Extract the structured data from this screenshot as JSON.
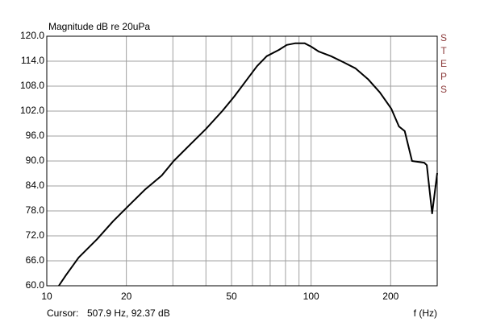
{
  "chart_data": {
    "type": "line",
    "title": "Magnitude dB re 20uPa",
    "side_label": "STEPS",
    "cursor_label": "Cursor:",
    "cursor_value": "507.9 Hz, 92.37 dB",
    "x_label": "f (Hz)",
    "x_scale": "log",
    "xlim": [
      10,
      300
    ],
    "ylim": [
      60,
      120
    ],
    "xticks": [
      10,
      20,
      50,
      100,
      200
    ],
    "x_minor_grid": [
      30,
      40,
      60,
      70,
      80,
      90
    ],
    "yticks": [
      {
        "value": 60,
        "label": "60.0"
      },
      {
        "value": 66,
        "label": "66.0"
      },
      {
        "value": 72,
        "label": "72.0"
      },
      {
        "value": 78,
        "label": "78.0"
      },
      {
        "value": 84,
        "label": "84.0"
      },
      {
        "value": 90,
        "label": "90.0"
      },
      {
        "value": 96,
        "label": "96.0"
      },
      {
        "value": 102,
        "label": "102.0"
      },
      {
        "value": 108,
        "label": "108.0"
      },
      {
        "value": 114,
        "label": "114.0"
      },
      {
        "value": 120,
        "label": "120.0"
      }
    ],
    "grid": true,
    "color": "#000000",
    "x": [
      11.1,
      11.8,
      13.2,
      15.5,
      17.8,
      20.5,
      23.6,
      27.2,
      30.2,
      34.8,
      40,
      46.1,
      51.2,
      56.9,
      62.4,
      67.9,
      75.5,
      80.9,
      86.9,
      94.6,
      100,
      107,
      119,
      132,
      147,
      164,
      182,
      201,
      215,
      226,
      241,
      268,
      274,
      287,
      300
    ],
    "values": [
      60,
      62.5,
      66.8,
      71.2,
      75.5,
      79.4,
      83.2,
      86.5,
      90,
      93.9,
      97.7,
      102,
      105.5,
      109.4,
      112.8,
      115.2,
      116.7,
      117.9,
      118.3,
      118.3,
      117.5,
      116.3,
      115.2,
      113.8,
      112.3,
      109.7,
      106.5,
      102.6,
      98.3,
      97.2,
      90,
      89.6,
      89,
      77.4,
      87.1
    ]
  }
}
